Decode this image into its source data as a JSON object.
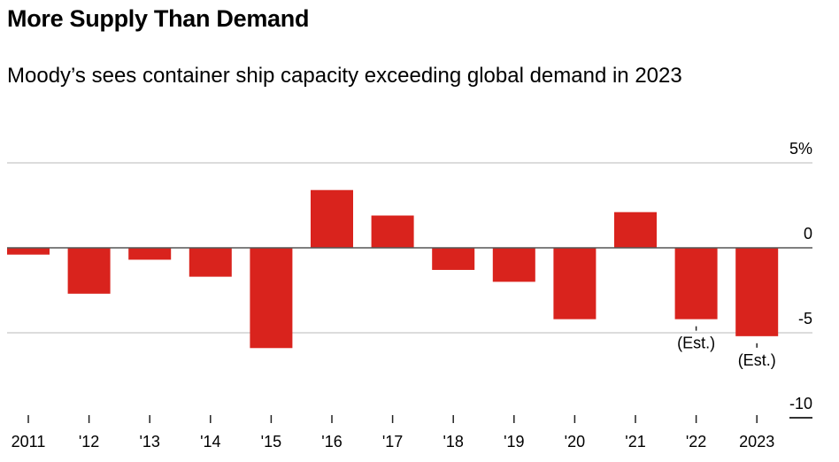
{
  "header": {
    "title": "More Supply Than Demand",
    "subtitle": "Moody’s sees container ship capacity exceeding global demand in 2023"
  },
  "chart_data": {
    "type": "bar",
    "title": "More Supply Than Demand",
    "subtitle": "Moody’s sees container ship capacity exceeding global demand in 2023",
    "xlabel": "",
    "ylabel": "",
    "categories": [
      "2011",
      "'12",
      "'13",
      "'14",
      "'15",
      "'16",
      "'17",
      "'18",
      "'19",
      "'20",
      "'21",
      "'22",
      "2023"
    ],
    "values": [
      -0.4,
      -2.7,
      -0.7,
      -1.7,
      -5.9,
      3.4,
      1.9,
      -1.3,
      -2.0,
      -4.2,
      2.1,
      -4.2,
      -5.2
    ],
    "ylim": [
      -10,
      5
    ],
    "yticks": [
      5,
      0,
      -5,
      -10
    ],
    "ytick_labels": [
      "5%",
      "0",
      "-5",
      "-10"
    ],
    "y_axis_position": "right",
    "grid": true,
    "bar_color": "#d9231d",
    "annotations": [
      {
        "category": "'22",
        "text": "(Est.)"
      },
      {
        "category": "2023",
        "text": "(Est.)"
      }
    ]
  }
}
